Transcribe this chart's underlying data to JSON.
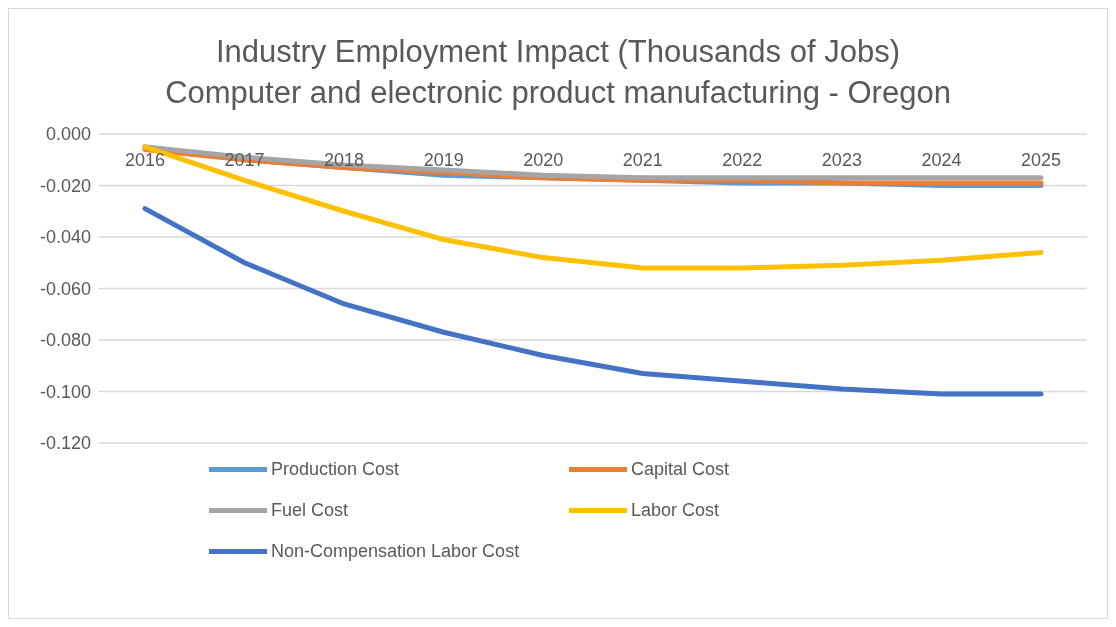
{
  "chart_data": {
    "type": "line",
    "title": "Industry Employment Impact (Thousands of Jobs)",
    "subtitle": "Computer and electronic product manufacturing - Oregon",
    "categories": [
      "2016",
      "2017",
      "2018",
      "2019",
      "2020",
      "2021",
      "2022",
      "2023",
      "2024",
      "2025"
    ],
    "series": [
      {
        "name": "Production Cost",
        "color": "#5b9bd5",
        "values": [
          -0.005,
          -0.01,
          -0.013,
          -0.016,
          -0.017,
          -0.018,
          -0.019,
          -0.019,
          -0.02,
          -0.02
        ]
      },
      {
        "name": "Capital Cost",
        "color": "#ed7d31",
        "values": [
          -0.006,
          -0.01,
          -0.013,
          -0.015,
          -0.017,
          -0.018,
          -0.018,
          -0.019,
          -0.019,
          -0.019
        ]
      },
      {
        "name": "Fuel Cost",
        "color": "#a5a5a5",
        "values": [
          -0.005,
          -0.009,
          -0.012,
          -0.014,
          -0.016,
          -0.017,
          -0.017,
          -0.017,
          -0.017,
          -0.017
        ]
      },
      {
        "name": "Labor Cost",
        "color": "#ffc000",
        "values": [
          -0.005,
          -0.018,
          -0.03,
          -0.041,
          -0.048,
          -0.052,
          -0.052,
          -0.051,
          -0.049,
          -0.046
        ]
      },
      {
        "name": "Non-Compensation Labor Cost",
        "color": "#4472c4",
        "values": [
          -0.029,
          -0.05,
          -0.066,
          -0.077,
          -0.086,
          -0.093,
          -0.096,
          -0.099,
          -0.101,
          -0.101
        ]
      }
    ],
    "ylim": [
      -0.12,
      0
    ],
    "yticks": [
      {
        "value": 0,
        "label": "0.000"
      },
      {
        "value": -0.02,
        "label": "-0.020"
      },
      {
        "value": -0.04,
        "label": "-0.040"
      },
      {
        "value": -0.06,
        "label": "-0.060"
      },
      {
        "value": -0.08,
        "label": "-0.080"
      },
      {
        "value": -0.1,
        "label": "-0.100"
      },
      {
        "value": -0.12,
        "label": "-0.120"
      }
    ],
    "grid": "y",
    "legend": "bottom",
    "marker": "none",
    "line_style": "solid"
  }
}
